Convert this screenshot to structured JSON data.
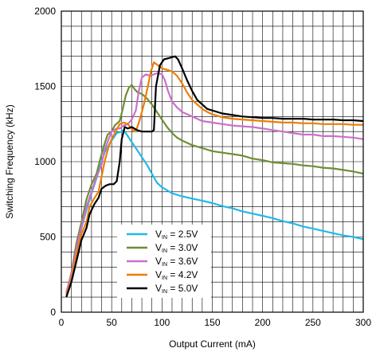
{
  "chart_data": {
    "type": "line",
    "title": "",
    "xlabel": "Output Current (mA)",
    "ylabel": "Switching Frequency (kHz)",
    "xlim": [
      0,
      300
    ],
    "ylim": [
      0,
      2000
    ],
    "x_ticks": [
      0,
      50,
      100,
      150,
      200,
      250,
      300
    ],
    "y_ticks": [
      0,
      500,
      1000,
      1500,
      2000
    ],
    "x_minor_step": 10,
    "y_minor_step": 100,
    "grid": true,
    "legend_position": "bottom-center",
    "series": [
      {
        "name": "V_IN = 2.5V",
        "legend_prefix": "V",
        "legend_sub": "IN",
        "legend_suffix": " = 2.5V",
        "color": "#21b9e8",
        "points": [
          [
            5,
            120
          ],
          [
            10,
            240
          ],
          [
            15,
            420
          ],
          [
            20,
            560
          ],
          [
            25,
            680
          ],
          [
            30,
            790
          ],
          [
            35,
            890
          ],
          [
            40,
            1000
          ],
          [
            43,
            1060
          ],
          [
            48,
            1120
          ],
          [
            52,
            1160
          ],
          [
            55,
            1190
          ],
          [
            60,
            1200
          ],
          [
            62,
            1210
          ],
          [
            65,
            1180
          ],
          [
            70,
            1130
          ],
          [
            75,
            1080
          ],
          [
            80,
            1030
          ],
          [
            85,
            980
          ],
          [
            90,
            920
          ],
          [
            95,
            860
          ],
          [
            100,
            830
          ],
          [
            105,
            810
          ],
          [
            110,
            790
          ],
          [
            120,
            770
          ],
          [
            130,
            755
          ],
          [
            140,
            740
          ],
          [
            150,
            725
          ],
          [
            160,
            705
          ],
          [
            170,
            690
          ],
          [
            180,
            670
          ],
          [
            190,
            655
          ],
          [
            200,
            640
          ],
          [
            210,
            625
          ],
          [
            220,
            605
          ],
          [
            230,
            590
          ],
          [
            240,
            570
          ],
          [
            250,
            555
          ],
          [
            260,
            540
          ],
          [
            270,
            525
          ],
          [
            280,
            510
          ],
          [
            290,
            500
          ],
          [
            300,
            485
          ]
        ]
      },
      {
        "name": "V_IN = 3.0V",
        "legend_prefix": "V",
        "legend_sub": "IN",
        "legend_suffix": " = 3.0V",
        "color": "#6e8e35",
        "points": [
          [
            5,
            130
          ],
          [
            10,
            260
          ],
          [
            15,
            460
          ],
          [
            20,
            600
          ],
          [
            25,
            750
          ],
          [
            30,
            850
          ],
          [
            35,
            920
          ],
          [
            38,
            1000
          ],
          [
            42,
            1100
          ],
          [
            46,
            1180
          ],
          [
            50,
            1200
          ],
          [
            53,
            1240
          ],
          [
            58,
            1270
          ],
          [
            61,
            1350
          ],
          [
            64,
            1440
          ],
          [
            67,
            1490
          ],
          [
            70,
            1510
          ],
          [
            73,
            1480
          ],
          [
            76,
            1460
          ],
          [
            80,
            1450
          ],
          [
            85,
            1420
          ],
          [
            90,
            1380
          ],
          [
            95,
            1330
          ],
          [
            100,
            1280
          ],
          [
            105,
            1230
          ],
          [
            110,
            1190
          ],
          [
            115,
            1160
          ],
          [
            120,
            1140
          ],
          [
            130,
            1110
          ],
          [
            140,
            1090
          ],
          [
            150,
            1070
          ],
          [
            160,
            1060
          ],
          [
            170,
            1050
          ],
          [
            180,
            1040
          ],
          [
            190,
            1020
          ],
          [
            200,
            1010
          ],
          [
            210,
            995
          ],
          [
            220,
            990
          ],
          [
            230,
            985
          ],
          [
            240,
            975
          ],
          [
            250,
            970
          ],
          [
            260,
            960
          ],
          [
            270,
            955
          ],
          [
            280,
            945
          ],
          [
            290,
            935
          ],
          [
            300,
            920
          ]
        ]
      },
      {
        "name": "V_IN = 3.6V",
        "legend_prefix": "V",
        "legend_sub": "IN",
        "legend_suffix": " = 3.6V",
        "color": "#cc6fcc",
        "points": [
          [
            5,
            130
          ],
          [
            10,
            250
          ],
          [
            15,
            420
          ],
          [
            20,
            570
          ],
          [
            25,
            700
          ],
          [
            30,
            800
          ],
          [
            35,
            900
          ],
          [
            40,
            980
          ],
          [
            43,
            1080
          ],
          [
            47,
            1150
          ],
          [
            50,
            1200
          ],
          [
            55,
            1220
          ],
          [
            58,
            1220
          ],
          [
            62,
            1240
          ],
          [
            66,
            1250
          ],
          [
            70,
            1280
          ],
          [
            74,
            1340
          ],
          [
            77,
            1470
          ],
          [
            80,
            1560
          ],
          [
            84,
            1580
          ],
          [
            88,
            1570
          ],
          [
            92,
            1580
          ],
          [
            96,
            1590
          ],
          [
            100,
            1580
          ],
          [
            103,
            1540
          ],
          [
            106,
            1470
          ],
          [
            110,
            1400
          ],
          [
            115,
            1360
          ],
          [
            120,
            1330
          ],
          [
            130,
            1300
          ],
          [
            140,
            1270
          ],
          [
            150,
            1260
          ],
          [
            160,
            1250
          ],
          [
            170,
            1240
          ],
          [
            180,
            1235
          ],
          [
            190,
            1230
          ],
          [
            200,
            1220
          ],
          [
            210,
            1210
          ],
          [
            220,
            1200
          ],
          [
            230,
            1190
          ],
          [
            240,
            1180
          ],
          [
            250,
            1180
          ],
          [
            260,
            1170
          ],
          [
            270,
            1170
          ],
          [
            280,
            1165
          ],
          [
            290,
            1160
          ],
          [
            300,
            1150
          ]
        ]
      },
      {
        "name": "V_IN = 4.2V",
        "legend_prefix": "V",
        "legend_sub": "IN",
        "legend_suffix": " = 4.2V",
        "color": "#f07d00",
        "points": [
          [
            5,
            110
          ],
          [
            10,
            220
          ],
          [
            15,
            380
          ],
          [
            20,
            520
          ],
          [
            25,
            600
          ],
          [
            28,
            700
          ],
          [
            33,
            760
          ],
          [
            37,
            800
          ],
          [
            40,
            900
          ],
          [
            43,
            1000
          ],
          [
            47,
            1100
          ],
          [
            50,
            1150
          ],
          [
            54,
            1200
          ],
          [
            58,
            1250
          ],
          [
            62,
            1260
          ],
          [
            66,
            1250
          ],
          [
            72,
            1200
          ],
          [
            75,
            1220
          ],
          [
            78,
            1280
          ],
          [
            82,
            1380
          ],
          [
            86,
            1500
          ],
          [
            89,
            1600
          ],
          [
            92,
            1660
          ],
          [
            96,
            1640
          ],
          [
            100,
            1620
          ],
          [
            105,
            1610
          ],
          [
            110,
            1600
          ],
          [
            115,
            1570
          ],
          [
            120,
            1520
          ],
          [
            125,
            1460
          ],
          [
            130,
            1410
          ],
          [
            135,
            1380
          ],
          [
            140,
            1350
          ],
          [
            145,
            1330
          ],
          [
            150,
            1315
          ],
          [
            160,
            1295
          ],
          [
            170,
            1285
          ],
          [
            180,
            1280
          ],
          [
            190,
            1275
          ],
          [
            200,
            1270
          ],
          [
            210,
            1265
          ],
          [
            220,
            1260
          ],
          [
            230,
            1260
          ],
          [
            240,
            1255
          ],
          [
            250,
            1255
          ],
          [
            260,
            1250
          ],
          [
            270,
            1250
          ],
          [
            280,
            1250
          ],
          [
            290,
            1245
          ],
          [
            300,
            1245
          ]
        ]
      },
      {
        "name": "V_IN = 5.0V",
        "legend_prefix": "V",
        "legend_sub": "IN",
        "legend_suffix": " = 5.0V",
        "color": "#000000",
        "points": [
          [
            5,
            100
          ],
          [
            10,
            200
          ],
          [
            15,
            340
          ],
          [
            20,
            480
          ],
          [
            25,
            560
          ],
          [
            28,
            650
          ],
          [
            33,
            720
          ],
          [
            37,
            760
          ],
          [
            40,
            820
          ],
          [
            44,
            840
          ],
          [
            48,
            850
          ],
          [
            52,
            850
          ],
          [
            55,
            870
          ],
          [
            58,
            1000
          ],
          [
            60,
            1150
          ],
          [
            63,
            1230
          ],
          [
            66,
            1220
          ],
          [
            70,
            1230
          ],
          [
            75,
            1210
          ],
          [
            80,
            1200
          ],
          [
            85,
            1200
          ],
          [
            90,
            1200
          ],
          [
            92,
            1210
          ],
          [
            94,
            1500
          ],
          [
            98,
            1640
          ],
          [
            102,
            1680
          ],
          [
            108,
            1690
          ],
          [
            113,
            1700
          ],
          [
            116,
            1680
          ],
          [
            120,
            1620
          ],
          [
            125,
            1540
          ],
          [
            130,
            1470
          ],
          [
            135,
            1410
          ],
          [
            140,
            1380
          ],
          [
            145,
            1350
          ],
          [
            150,
            1340
          ],
          [
            160,
            1320
          ],
          [
            170,
            1310
          ],
          [
            180,
            1300
          ],
          [
            190,
            1295
          ],
          [
            200,
            1290
          ],
          [
            210,
            1290
          ],
          [
            220,
            1285
          ],
          [
            230,
            1285
          ],
          [
            240,
            1285
          ],
          [
            250,
            1280
          ],
          [
            260,
            1280
          ],
          [
            270,
            1280
          ],
          [
            280,
            1275
          ],
          [
            290,
            1275
          ],
          [
            300,
            1270
          ]
        ]
      }
    ]
  }
}
